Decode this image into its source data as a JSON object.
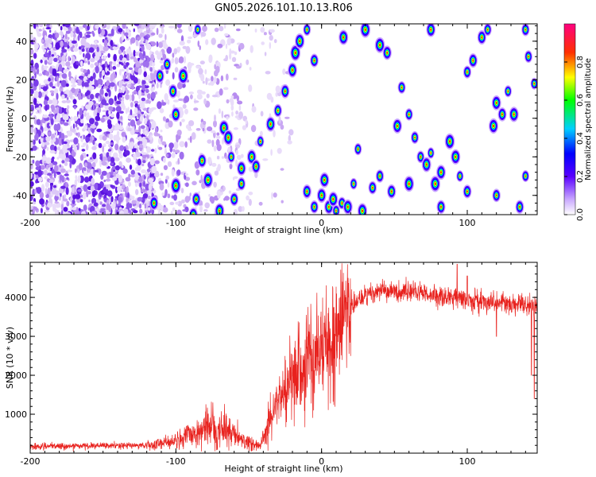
{
  "figure": {
    "title": "GN05.2026.101.10.13.R06"
  },
  "chart_data": [
    {
      "type": "heatmap",
      "title": "GN05.2026.101.10.13.R06",
      "xlabel": "Height of straight line (km)",
      "ylabel": "Frequency (Hz)",
      "xlim": [
        -200,
        148
      ],
      "ylim": [
        -50,
        49
      ],
      "x_ticks": [
        -200,
        -100,
        0,
        100
      ],
      "x_tick_labels": [
        "-200",
        "-100",
        "0",
        "100"
      ],
      "y_ticks": [
        -40,
        -20,
        0,
        20,
        40
      ],
      "y_tick_labels": [
        "-40",
        "-20",
        "0",
        "20",
        "40"
      ],
      "colorbar": {
        "label": "Normalized spectral amplitude",
        "range": [
          0,
          1
        ],
        "ticks": [
          0,
          0.2,
          0.4,
          0.6,
          0.8
        ],
        "tick_labels": [
          "0.0",
          "0.2",
          "0.4",
          "0.6",
          "0.8"
        ]
      },
      "description_features": {
        "dense_noise_region_km": [
          -200,
          -115
        ],
        "sparse_noise_region_km": [
          -115,
          -60
        ],
        "diagonal_streak_from": [
          -75,
          -48
        ],
        "diagonal_streak_to": [
          -15,
          47
        ]
      }
    },
    {
      "type": "line",
      "title": "",
      "xlabel": "Height of straight line (km)",
      "ylabel": "SNR (10 * v/v)",
      "xlim": [
        -200,
        148
      ],
      "ylim": [
        0,
        4900
      ],
      "x_ticks": [
        -200,
        -100,
        0,
        100
      ],
      "x_tick_labels": [
        "-200",
        "-100",
        "0",
        "100"
      ],
      "y_ticks": [
        1000,
        2000,
        3000,
        4000
      ],
      "y_tick_labels": [
        "1000",
        "2000",
        "3000",
        "4000"
      ],
      "series": [
        {
          "name": "SNR",
          "color": "#e8221e",
          "x": [
            -200,
            -150,
            -120,
            -100,
            -85,
            -75,
            -65,
            -50,
            -42,
            -38,
            -30,
            -20,
            -10,
            0,
            10,
            20,
            30,
            40,
            60,
            80,
            100,
            120,
            148
          ],
          "values": [
            170,
            190,
            200,
            300,
            550,
            700,
            600,
            250,
            200,
            700,
            1300,
            1900,
            2300,
            2700,
            3200,
            3750,
            4050,
            4150,
            4150,
            4050,
            3950,
            3850,
            3800
          ]
        }
      ],
      "spikes": [
        {
          "x": 93,
          "value": 4850
        },
        {
          "x": 100,
          "value": 4550
        },
        {
          "x": 120,
          "value": 3000
        },
        {
          "x": 144,
          "value": 2000
        },
        {
          "x": 146,
          "value": 1400
        }
      ]
    }
  ]
}
